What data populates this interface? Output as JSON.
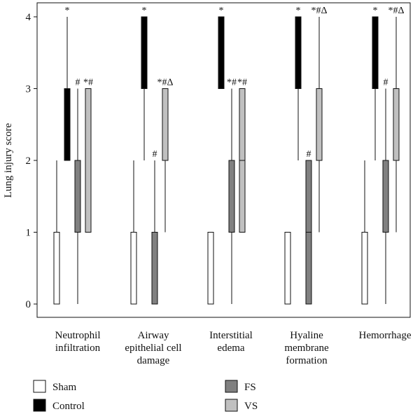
{
  "chart_data": {
    "type": "boxplot",
    "ylabel": "Lung injury score",
    "ylim": [
      0,
      4
    ],
    "yticks": [
      0,
      1,
      2,
      3,
      4
    ],
    "categories": [
      [
        "Neutrophil",
        "infiltration"
      ],
      [
        "Airway",
        "epithelial cell",
        "damage"
      ],
      [
        "Interstitial",
        "edema"
      ],
      [
        "Hyaline",
        "membrane",
        "formation"
      ],
      [
        "Hemorrhage"
      ]
    ],
    "legend": [
      {
        "name": "Sham",
        "color": "#ffffff"
      },
      {
        "name": "Control",
        "color": "#000000"
      },
      {
        "name": "FS",
        "color": "#808080"
      },
      {
        "name": "VS",
        "color": "#c0c0c0"
      }
    ],
    "series": [
      {
        "name": "Sham",
        "color": "#ffffff",
        "boxes": [
          {
            "min": 0,
            "q1": 0,
            "median": 0,
            "q3": 1,
            "max": 2,
            "annotation": ""
          },
          {
            "min": 0,
            "q1": 0,
            "median": 0,
            "q3": 1,
            "max": 2,
            "annotation": ""
          },
          {
            "min": 0,
            "q1": 0,
            "median": 0,
            "q3": 1,
            "max": 1,
            "annotation": ""
          },
          {
            "min": 0,
            "q1": 0,
            "median": 0,
            "q3": 1,
            "max": 1,
            "annotation": ""
          },
          {
            "min": 0,
            "q1": 0,
            "median": 0,
            "q3": 1,
            "max": 2,
            "annotation": ""
          }
        ]
      },
      {
        "name": "Control",
        "color": "#000000",
        "boxes": [
          {
            "min": 2,
            "q1": 2,
            "median": 3,
            "q3": 3,
            "max": 4,
            "annotation": "*"
          },
          {
            "min": 2,
            "q1": 3,
            "median": 4,
            "q3": 4,
            "max": 4,
            "annotation": "*"
          },
          {
            "min": 3,
            "q1": 3,
            "median": 4,
            "q3": 4,
            "max": 4,
            "annotation": "*"
          },
          {
            "min": 2,
            "q1": 3,
            "median": 4,
            "q3": 4,
            "max": 4,
            "annotation": "*"
          },
          {
            "min": 2,
            "q1": 3,
            "median": 4,
            "q3": 4,
            "max": 4,
            "annotation": "*"
          }
        ]
      },
      {
        "name": "FS",
        "color": "#808080",
        "boxes": [
          {
            "min": 0,
            "q1": 1,
            "median": 2,
            "q3": 2,
            "max": 3,
            "annotation": "#"
          },
          {
            "min": 0,
            "q1": 0,
            "median": 0,
            "q3": 1,
            "max": 2,
            "annotation": "#"
          },
          {
            "min": 0,
            "q1": 1,
            "median": 2,
            "q3": 2,
            "max": 3,
            "annotation": "*#"
          },
          {
            "min": 0,
            "q1": 0,
            "median": 1,
            "q3": 2,
            "max": 2,
            "annotation": "#"
          },
          {
            "min": 0,
            "q1": 1,
            "median": 2,
            "q3": 2,
            "max": 3,
            "annotation": "#"
          }
        ]
      },
      {
        "name": "VS",
        "color": "#c0c0c0",
        "boxes": [
          {
            "min": 1,
            "q1": 1,
            "median": 3,
            "q3": 3,
            "max": 3,
            "annotation": "*#"
          },
          {
            "min": 1,
            "q1": 2,
            "median": 3,
            "q3": 3,
            "max": 3,
            "annotation": "*#Δ"
          },
          {
            "min": 1,
            "q1": 1,
            "median": 2,
            "q3": 3,
            "max": 3,
            "annotation": "*#"
          },
          {
            "min": 1,
            "q1": 2,
            "median": 3,
            "q3": 3,
            "max": 4,
            "annotation": "*#Δ"
          },
          {
            "min": 1,
            "q1": 2,
            "median": 3,
            "q3": 3,
            "max": 4,
            "annotation": "*#Δ"
          }
        ]
      }
    ]
  }
}
